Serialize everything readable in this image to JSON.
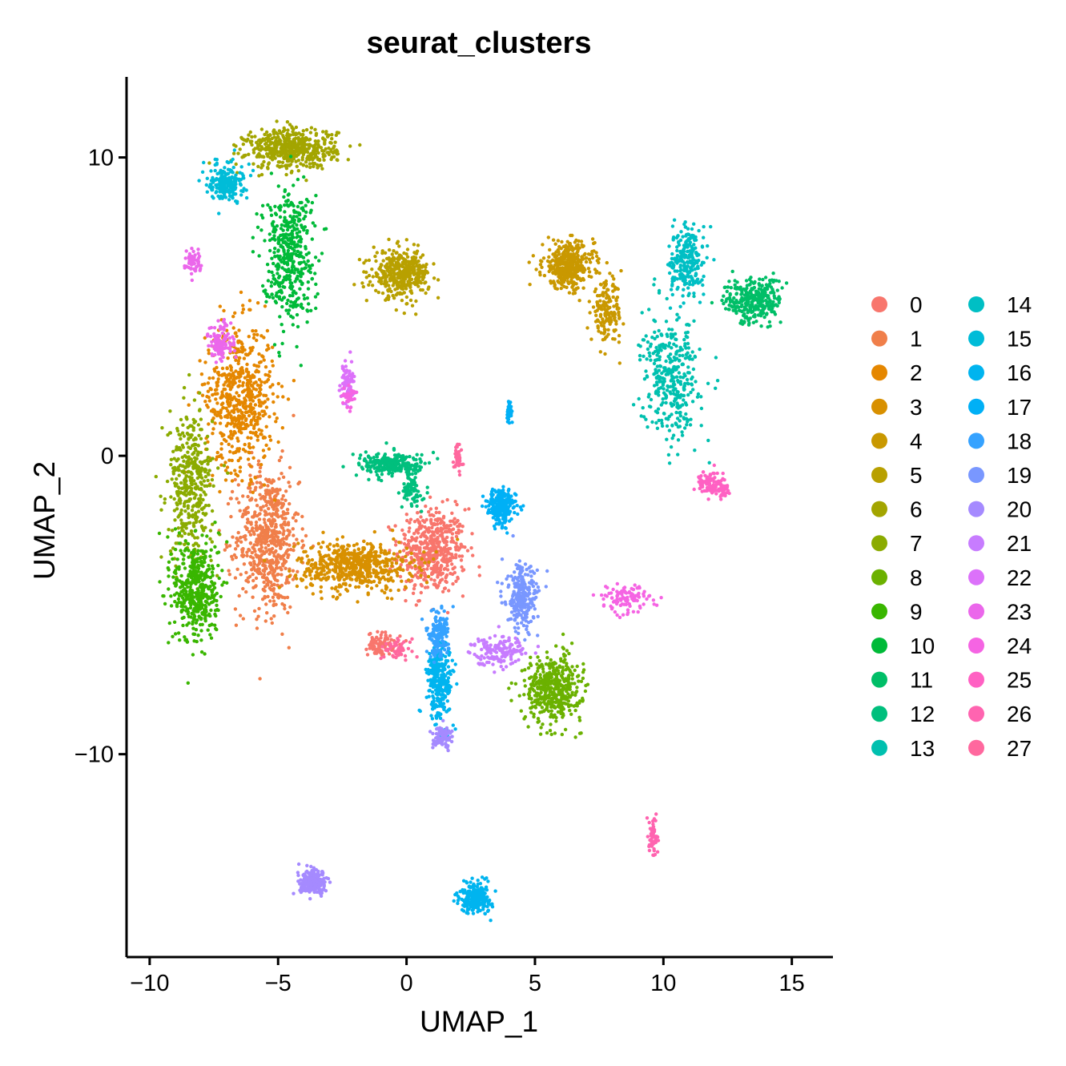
{
  "chart_data": {
    "type": "scatter",
    "title": "seurat_clusters",
    "xlabel": "UMAP_1",
    "ylabel": "UMAP_2",
    "xlim": [
      -10.9,
      16.6
    ],
    "ylim": [
      -16.8,
      12.7
    ],
    "x_ticks": [
      -10,
      -5,
      0,
      5,
      10,
      15
    ],
    "x_tick_labels": [
      "−10",
      "−5",
      "0",
      "5",
      "10",
      "15"
    ],
    "y_ticks": [
      -10,
      0,
      10
    ],
    "y_tick_labels": [
      "−10",
      "0",
      "10"
    ],
    "grid": false,
    "legend_position": "right",
    "legend_columns": 2,
    "series": [
      {
        "name": "0",
        "color": "#F8766D",
        "blobs": [
          [
            1.0,
            -3.2,
            1.2,
            1.3,
            520
          ],
          [
            -1.0,
            -6.3,
            0.45,
            0.35,
            90
          ]
        ]
      },
      {
        "name": "1",
        "color": "#F07F4A",
        "blobs": [
          [
            -5.4,
            -2.8,
            1.1,
            2.2,
            620
          ]
        ]
      },
      {
        "name": "2",
        "color": "#E58700",
        "blobs": [
          [
            -6.5,
            2.0,
            1.2,
            2.2,
            600
          ]
        ]
      },
      {
        "name": "3",
        "color": "#D89000",
        "blobs": [
          [
            -2.0,
            -3.7,
            2.0,
            0.75,
            600
          ]
        ]
      },
      {
        "name": "4",
        "color": "#C99800",
        "blobs": [
          [
            6.3,
            6.4,
            0.9,
            0.7,
            380
          ],
          [
            7.8,
            4.8,
            0.55,
            0.9,
            160
          ]
        ]
      },
      {
        "name": "5",
        "color": "#B8A000",
        "blobs": [
          [
            -0.2,
            6.1,
            1.0,
            0.7,
            400
          ]
        ]
      },
      {
        "name": "6",
        "color": "#A3A500",
        "blobs": [
          [
            -4.5,
            10.3,
            1.6,
            0.6,
            520
          ]
        ]
      },
      {
        "name": "7",
        "color": "#8BAB00",
        "blobs": [
          [
            -8.4,
            -1.0,
            0.8,
            2.2,
            400
          ]
        ]
      },
      {
        "name": "8",
        "color": "#6BB100",
        "blobs": [
          [
            5.7,
            -7.8,
            1.0,
            1.0,
            450
          ]
        ]
      },
      {
        "name": "9",
        "color": "#39B600",
        "blobs": [
          [
            -8.2,
            -4.5,
            0.8,
            1.6,
            450
          ]
        ]
      },
      {
        "name": "10",
        "color": "#00BA38",
        "blobs": [
          [
            -4.6,
            6.8,
            0.9,
            2.0,
            450
          ]
        ]
      },
      {
        "name": "11",
        "color": "#00BE67",
        "blobs": [
          [
            13.5,
            5.2,
            1.0,
            0.7,
            300
          ]
        ]
      },
      {
        "name": "12",
        "color": "#00BF7D",
        "blobs": [
          [
            -0.5,
            -0.3,
            1.2,
            0.35,
            250
          ],
          [
            0.2,
            -1.2,
            0.35,
            0.5,
            80
          ]
        ]
      },
      {
        "name": "13",
        "color": "#00C0AF",
        "blobs": [
          [
            10.3,
            2.6,
            1.0,
            1.8,
            360
          ]
        ]
      },
      {
        "name": "14",
        "color": "#00BFC4",
        "blobs": [
          [
            10.9,
            6.5,
            0.6,
            1.1,
            250
          ]
        ]
      },
      {
        "name": "15",
        "color": "#00BCD8",
        "blobs": [
          [
            -7.0,
            9.2,
            0.6,
            0.6,
            200
          ]
        ]
      },
      {
        "name": "16",
        "color": "#00B4EF",
        "blobs": [
          [
            2.7,
            -14.8,
            0.55,
            0.45,
            260
          ],
          [
            1.3,
            -7.5,
            0.45,
            1.2,
            300
          ]
        ]
      },
      {
        "name": "17",
        "color": "#00B0F6",
        "blobs": [
          [
            3.7,
            -1.7,
            0.5,
            0.55,
            250
          ],
          [
            4.0,
            1.5,
            0.08,
            0.4,
            40
          ]
        ]
      },
      {
        "name": "18",
        "color": "#35A2FF",
        "blobs": [
          [
            1.2,
            -6.0,
            0.4,
            0.7,
            150
          ]
        ]
      },
      {
        "name": "19",
        "color": "#7997FF",
        "blobs": [
          [
            4.5,
            -4.8,
            0.55,
            1.0,
            250
          ]
        ]
      },
      {
        "name": "20",
        "color": "#A58AFF",
        "blobs": [
          [
            -3.6,
            -14.3,
            0.5,
            0.35,
            220
          ],
          [
            1.4,
            -9.4,
            0.35,
            0.35,
            80
          ]
        ]
      },
      {
        "name": "21",
        "color": "#C77CFF",
        "blobs": [
          [
            3.6,
            -6.5,
            1.0,
            0.45,
            150
          ]
        ]
      },
      {
        "name": "22",
        "color": "#DC71FA",
        "blobs": [
          [
            -2.3,
            2.4,
            0.25,
            0.6,
            80
          ]
        ]
      },
      {
        "name": "23",
        "color": "#EB67EB",
        "blobs": [
          [
            -7.2,
            3.8,
            0.45,
            0.6,
            120
          ],
          [
            -8.3,
            6.5,
            0.3,
            0.4,
            60
          ]
        ]
      },
      {
        "name": "24",
        "color": "#F564E3",
        "blobs": [
          [
            8.5,
            -4.8,
            0.9,
            0.4,
            110
          ],
          [
            -2.2,
            2.0,
            0.2,
            0.3,
            40
          ]
        ]
      },
      {
        "name": "25",
        "color": "#FF61C3",
        "blobs": [
          [
            11.8,
            -0.9,
            0.5,
            0.4,
            90
          ],
          [
            12.4,
            -1.2,
            0.2,
            0.2,
            30
          ]
        ]
      },
      {
        "name": "26",
        "color": "#FF64B0",
        "blobs": [
          [
            9.6,
            -12.8,
            0.15,
            0.6,
            60
          ]
        ]
      },
      {
        "name": "27",
        "color": "#FF689E",
        "blobs": [
          [
            2.0,
            0.0,
            0.15,
            0.5,
            40
          ],
          [
            -0.3,
            -6.5,
            0.5,
            0.3,
            60
          ]
        ]
      }
    ]
  }
}
